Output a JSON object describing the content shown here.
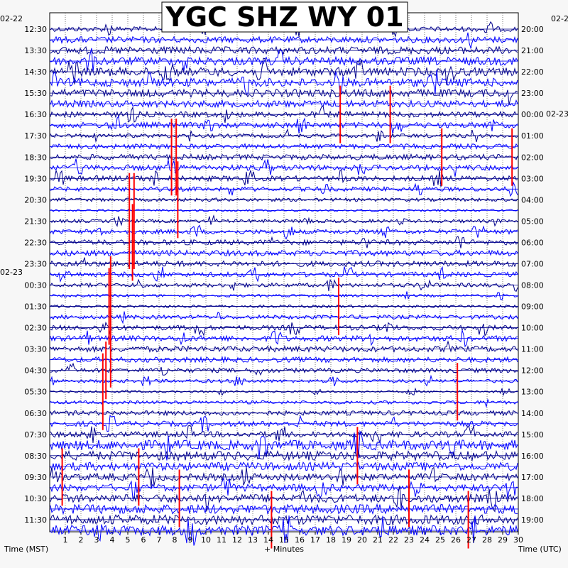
{
  "chart_data": {
    "type": "line",
    "title": "YGC SHZ WY 01",
    "xlabel": "+ Minutes",
    "left_axis_label": "Time (MST)",
    "right_axis_label": "Time (UTC)",
    "x_ticks": [
      "1",
      "2",
      "3",
      "4",
      "5",
      "6",
      "7",
      "8",
      "9",
      "10",
      "11",
      "12",
      "13",
      "14",
      "15",
      "16",
      "17",
      "18",
      "19",
      "20",
      "21",
      "22",
      "23",
      "24",
      "25",
      "26",
      "27",
      "28",
      "29",
      "30"
    ],
    "xlim": [
      0,
      30
    ],
    "left_date_labels": [
      "02-22",
      "02-23"
    ],
    "right_date_labels": [
      "02-2",
      "02-23"
    ],
    "left_time_labels": [
      "12:30",
      "13:30",
      "14:30",
      "15:30",
      "16:30",
      "17:30",
      "18:30",
      "19:30",
      "20:30",
      "21:30",
      "22:30",
      "23:30",
      "00:30",
      "01:30",
      "02:30",
      "03:30",
      "04:30",
      "05:30",
      "06:30",
      "07:30",
      "08:30",
      "09:30",
      "10:30",
      "11:30"
    ],
    "right_time_labels": [
      "20:00",
      "21:00",
      "22:00",
      "23:00",
      "00:00",
      "01:00",
      "02:00",
      "03:00",
      "04:00",
      "05:00",
      "06:00",
      "07:00",
      "08:00",
      "09:00",
      "10:00",
      "11:00",
      "12:00",
      "13:00",
      "14:00",
      "15:00",
      "16:00",
      "17:00",
      "18:00",
      "19:00"
    ],
    "trace_colors": [
      "#00008b",
      "#0000ff"
    ],
    "event_color": "#ff0000",
    "grid": true,
    "events": [
      {
        "row": 4,
        "minute": 18.6,
        "amp": 3
      },
      {
        "row": 4,
        "minute": 21.8,
        "amp": 3
      },
      {
        "row": 6,
        "minute": 7.8,
        "amp": 4
      },
      {
        "row": 6,
        "minute": 8.1,
        "amp": 4
      },
      {
        "row": 6,
        "minute": 25.1,
        "amp": 3
      },
      {
        "row": 6,
        "minute": 29.6,
        "amp": 3
      },
      {
        "row": 8,
        "minute": 8.2,
        "amp": 4
      },
      {
        "row": 9,
        "minute": 5.1,
        "amp": 5
      },
      {
        "row": 9,
        "minute": 5.4,
        "amp": 5
      },
      {
        "row": 10,
        "minute": 5.3,
        "amp": 4
      },
      {
        "row": 12,
        "minute": 3.9,
        "amp": 3
      },
      {
        "row": 13,
        "minute": 3.8,
        "amp": 4
      },
      {
        "row": 13,
        "minute": 18.5,
        "amp": 3
      },
      {
        "row": 15,
        "minute": 3.9,
        "amp": 4
      },
      {
        "row": 16,
        "minute": 3.6,
        "amp": 3
      },
      {
        "row": 17,
        "minute": 3.4,
        "amp": 4
      },
      {
        "row": 17,
        "minute": 26.1,
        "amp": 3
      },
      {
        "row": 20,
        "minute": 19.7,
        "amp": 3
      },
      {
        "row": 21,
        "minute": 0.8,
        "amp": 3
      },
      {
        "row": 21,
        "minute": 5.7,
        "amp": 3
      },
      {
        "row": 22,
        "minute": 8.3,
        "amp": 3
      },
      {
        "row": 22,
        "minute": 23.0,
        "amp": 3
      },
      {
        "row": 23,
        "minute": 14.2,
        "amp": 3
      },
      {
        "row": 23,
        "minute": 26.8,
        "amp": 3
      }
    ]
  }
}
